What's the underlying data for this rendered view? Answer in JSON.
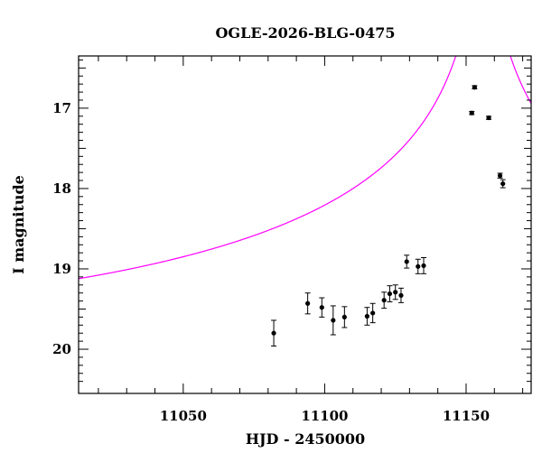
{
  "chart_data": {
    "type": "scatter",
    "title": "OGLE-2026-BLG-0475",
    "xlabel": "HJD - 2450000",
    "ylabel": "I magnitude",
    "xlim": [
      11013,
      11173
    ],
    "ylim": [
      20.55,
      16.35
    ],
    "y_inverted": true,
    "x_ticks": [
      11050,
      11100,
      11150
    ],
    "y_ticks": [
      17,
      18,
      19,
      20
    ],
    "grid": false,
    "legend": "none",
    "series": [
      {
        "kind": "points",
        "color": "#000000",
        "points": [
          {
            "x": 11082,
            "y": 19.8,
            "err": 0.16
          },
          {
            "x": 11094,
            "y": 19.43,
            "err": 0.13
          },
          {
            "x": 11099,
            "y": 19.48,
            "err": 0.12
          },
          {
            "x": 11103,
            "y": 19.64,
            "err": 0.18
          },
          {
            "x": 11107,
            "y": 19.6,
            "err": 0.13
          },
          {
            "x": 11115,
            "y": 19.59,
            "err": 0.11
          },
          {
            "x": 11117,
            "y": 19.55,
            "err": 0.12
          },
          {
            "x": 11121,
            "y": 19.39,
            "err": 0.1
          },
          {
            "x": 11123,
            "y": 19.31,
            "err": 0.1
          },
          {
            "x": 11125,
            "y": 19.29,
            "err": 0.09
          },
          {
            "x": 11127,
            "y": 19.33,
            "err": 0.09
          },
          {
            "x": 11129,
            "y": 18.91,
            "err": 0.08
          },
          {
            "x": 11133,
            "y": 18.97,
            "err": 0.09
          },
          {
            "x": 11135,
            "y": 18.96,
            "err": 0.1
          },
          {
            "x": 11152,
            "y": 17.06,
            "err": 0.02
          },
          {
            "x": 11153,
            "y": 16.74,
            "err": 0.02
          },
          {
            "x": 11158,
            "y": 17.12,
            "err": 0.02
          },
          {
            "x": 11162,
            "y": 17.84,
            "err": 0.03
          },
          {
            "x": 11163,
            "y": 17.94,
            "err": 0.05
          }
        ]
      },
      {
        "kind": "model",
        "color": "#ff00ff",
        "model": {
          "t0": 11156,
          "u0": 0.01,
          "tE": 250,
          "fs": 0.1,
          "fb": 0.0,
          "I_source": 19.85
        }
      }
    ]
  }
}
